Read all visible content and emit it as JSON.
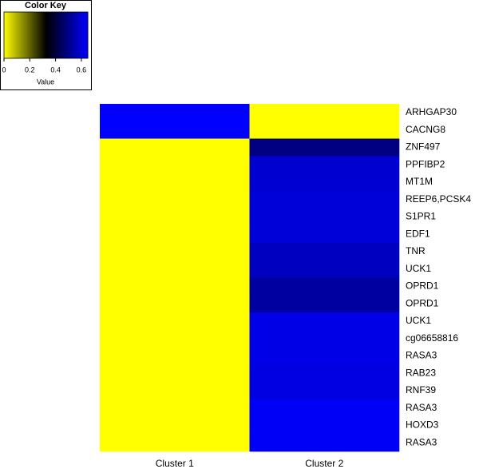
{
  "chart_data": {
    "type": "heatmap",
    "key_title": "Color Key",
    "key_label": "Value",
    "key_lim": [
      0,
      0.65
    ],
    "key_ticks": [
      0,
      0.2,
      0.4,
      0.6
    ],
    "colors": [
      "#ffff00",
      "#000000",
      "#0000ff"
    ],
    "columns": [
      "Cluster 1",
      "Cluster 2"
    ],
    "rows": [
      "ARHGAP30",
      "CACNG8",
      "ZNF497",
      "PPFIBP2",
      "MT1M",
      "REEP6,PCSK4",
      "S1PR1",
      "EDF1",
      "TNR",
      "UCK1",
      "OPRD1",
      "OPRD1",
      "UCK1",
      "cg06658816",
      "RASA3",
      "RAB23",
      "RNF39",
      "RASA3",
      "HOXD3",
      "RASA3"
    ],
    "values": [
      [
        0.65,
        0
      ],
      [
        0.65,
        0
      ],
      [
        0,
        0.49
      ],
      [
        0,
        0.59
      ],
      [
        0,
        0.59
      ],
      [
        0,
        0.6
      ],
      [
        0,
        0.6
      ],
      [
        0,
        0.6
      ],
      [
        0,
        0.57
      ],
      [
        0,
        0.57
      ],
      [
        0,
        0.53
      ],
      [
        0,
        0.53
      ],
      [
        0,
        0.62
      ],
      [
        0,
        0.62
      ],
      [
        0,
        0.62
      ],
      [
        0,
        0.61
      ],
      [
        0,
        0.61
      ],
      [
        0,
        0.64
      ],
      [
        0,
        0.64
      ],
      [
        0,
        0.64
      ]
    ]
  }
}
